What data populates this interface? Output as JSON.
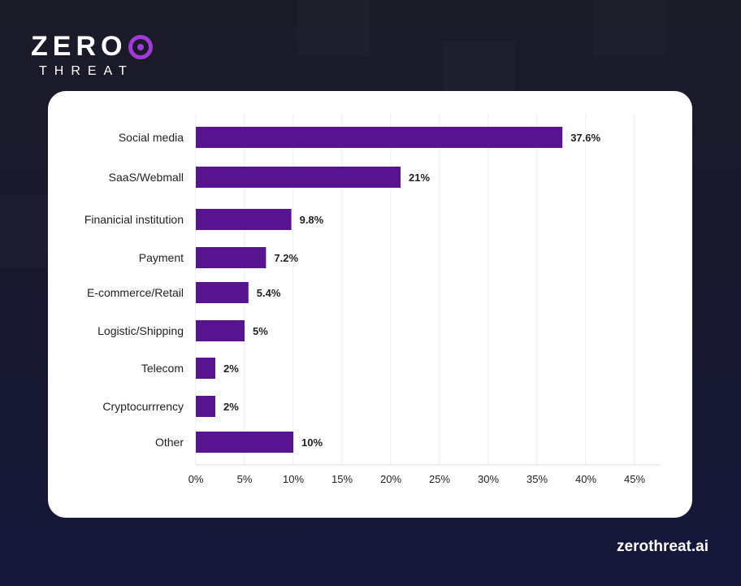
{
  "brand": {
    "logo_word": "ZERO",
    "logo_sub": "THREAT",
    "site": "zerothreat.ai",
    "bar_color": "#581490",
    "accent": "#a03ad8"
  },
  "chart_data": {
    "type": "bar",
    "orientation": "horizontal",
    "categories": [
      "Social media",
      "SaaS/Webmall",
      "Finanicial institution",
      "Payment",
      "E-commerce/Retail",
      "Logistic/Shipping",
      "Telecom",
      "Cryptocurrrency",
      "Other"
    ],
    "values": [
      37.6,
      21,
      9.8,
      7.2,
      5.4,
      5,
      2,
      2,
      10
    ],
    "value_labels": [
      "37.6%",
      "21%",
      "9.8%",
      "7.2%",
      "5.4%",
      "5%",
      "2%",
      "2%",
      "10%"
    ],
    "ticks": [
      0,
      5,
      10,
      15,
      20,
      25,
      30,
      35,
      40,
      45
    ],
    "tick_labels": [
      "0%",
      "5%",
      "10%",
      "15%",
      "20%",
      "25%",
      "30%",
      "35%",
      "40%",
      "45%"
    ],
    "xlim": [
      0,
      45
    ],
    "grid": true,
    "title": "",
    "xlabel": "",
    "ylabel": ""
  }
}
